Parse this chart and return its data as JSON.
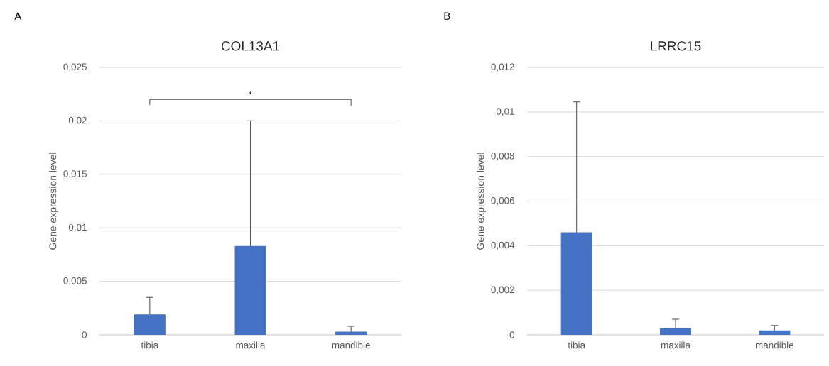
{
  "chart_data": [
    {
      "type": "bar",
      "title": "COL13A1",
      "ylabel": "Gene expression level",
      "categories": [
        "tibia",
        "maxilla",
        "mandible"
      ],
      "values": [
        0.0019,
        0.0083,
        0.0003
      ],
      "errors": [
        [
          0.0019,
          0.0035
        ],
        [
          0.0083,
          0.02
        ],
        [
          0.0003,
          0.0008
        ]
      ],
      "color": "#4472c4",
      "ylim": [
        0,
        0.025
      ],
      "yticks": [
        {
          "value": 0,
          "label": "0"
        },
        {
          "value": 0.005,
          "label": "0,005"
        },
        {
          "value": 0.01,
          "label": "0,01"
        },
        {
          "value": 0.015,
          "label": "0,015"
        },
        {
          "value": 0.02,
          "label": "0,02"
        },
        {
          "value": 0.025,
          "label": "0,025"
        }
      ],
      "grid": "y",
      "annotations": [
        "A",
        "*"
      ]
    },
    {
      "type": "bar",
      "title": "LRRC15",
      "ylabel": "Gene expression level",
      "categories": [
        "tibia",
        "maxilla",
        "mandible"
      ],
      "values": [
        0.0046,
        0.0003,
        0.0002
      ],
      "errors": [
        [
          0.0046,
          0.01045
        ],
        [
          0.0003,
          0.0007
        ],
        [
          0.0002,
          0.00042
        ]
      ],
      "color": "#4472c4",
      "ylim": [
        0,
        0.012
      ],
      "yticks": [
        {
          "value": 0,
          "label": "0"
        },
        {
          "value": 0.002,
          "label": "0,002"
        },
        {
          "value": 0.004,
          "label": "0,004"
        },
        {
          "value": 0.006,
          "label": "0,006"
        },
        {
          "value": 0.008,
          "label": "0,008"
        },
        {
          "value": 0.01,
          "label": "0,01"
        },
        {
          "value": 0.012,
          "label": "0,012"
        }
      ],
      "grid": "y",
      "annotations": [
        "B"
      ]
    }
  ]
}
